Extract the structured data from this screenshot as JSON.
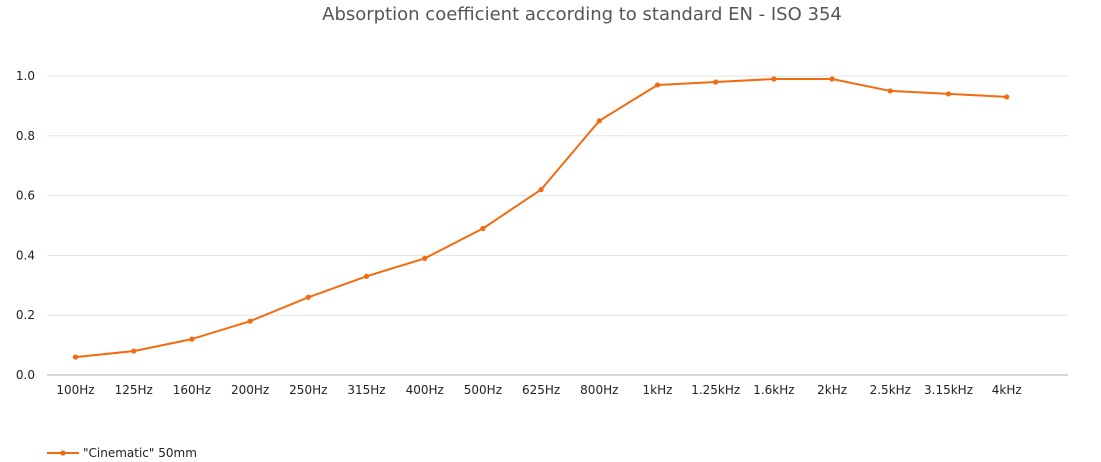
{
  "chart_data": {
    "type": "line",
    "title": "Absorption coefficient according to standard EN - ISO 354",
    "xlabel": "",
    "ylabel": "",
    "categories": [
      "100Hz",
      "125Hz",
      "160Hz",
      "200Hz",
      "250Hz",
      "315Hz",
      "400Hz",
      "500Hz",
      "625Hz",
      "800Hz",
      "1kHz",
      "1.25kHz",
      "1.6kHz",
      "2kHz",
      "2.5kHz",
      "3.15kHz",
      "4kHz"
    ],
    "series": [
      {
        "name": "\"Cinematic\" 50mm",
        "color": "#f26b10",
        "values": [
          0.06,
          0.08,
          0.12,
          0.18,
          0.26,
          0.33,
          0.39,
          0.49,
          0.62,
          0.85,
          0.97,
          0.98,
          0.99,
          0.99,
          0.95,
          0.94,
          0.93
        ]
      }
    ],
    "ylim": [
      0,
      1.0
    ],
    "yticks": [
      "0.0",
      "0.2",
      "0.4",
      "0.6",
      "0.8",
      "1.0"
    ],
    "grid": true,
    "legend_position": "bottom-left"
  }
}
